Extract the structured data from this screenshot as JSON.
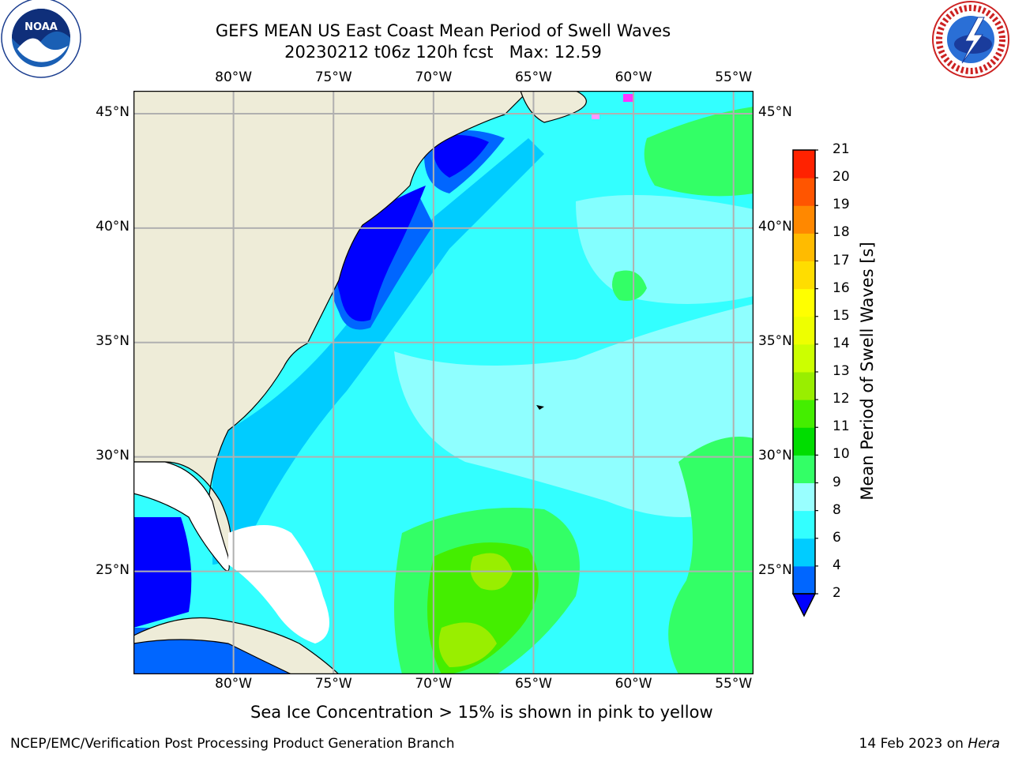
{
  "title": {
    "line1": "GEFS MEAN US East Coast Mean Period of Swell Waves",
    "line2": "20230212 t06z 120h fcst   Max: 12.59"
  },
  "logos": {
    "left": {
      "name": "NOAA",
      "ring_text": "NATIONAL OCEANIC AND ATMOSPHERIC ADMINISTRATION",
      "bottom_text": "U.S. DEPARTMENT OF COMMERCE"
    },
    "right": {
      "name": "National Weather Service",
      "ring_text": "NATIONAL WEATHER SERVICE"
    }
  },
  "map": {
    "region": "US East Coast / western North Atlantic",
    "lon_range": [
      -85,
      -54
    ],
    "lat_range": [
      20.5,
      46
    ],
    "lon_ticks": [
      "80°W",
      "75°W",
      "70°W",
      "65°W",
      "60°W",
      "55°W"
    ],
    "lat_ticks": [
      "45°N",
      "40°N",
      "35°N",
      "30°N",
      "25°N"
    ],
    "gridlines": true,
    "land_color": "#eeecd8",
    "sea_ice_note": "Sea Ice Concentration > 15% is shown in pink to yellow"
  },
  "colorbar": {
    "label": "Mean Period of Swell Waves [s]",
    "ticks": [
      "2",
      "4",
      "6",
      "8",
      "9",
      "10",
      "11",
      "12",
      "13",
      "14",
      "15",
      "16",
      "17",
      "18",
      "19",
      "20",
      "21"
    ],
    "colors": [
      "#0066ff",
      "#00ccff",
      "#33ffff",
      "#99ffff",
      "#33ff66",
      "#00dd00",
      "#44ee00",
      "#99ee00",
      "#ccff00",
      "#eeff00",
      "#ffff00",
      "#ffdd00",
      "#ffbb00",
      "#ff8800",
      "#ff5500",
      "#ff2200"
    ],
    "extend_color": "#0000ff"
  },
  "footer": {
    "left": "NCEP/EMC/Verification Post Processing Product Generation Branch",
    "right_date": "14 Feb 2023 on ",
    "right_machine": "Hera"
  }
}
